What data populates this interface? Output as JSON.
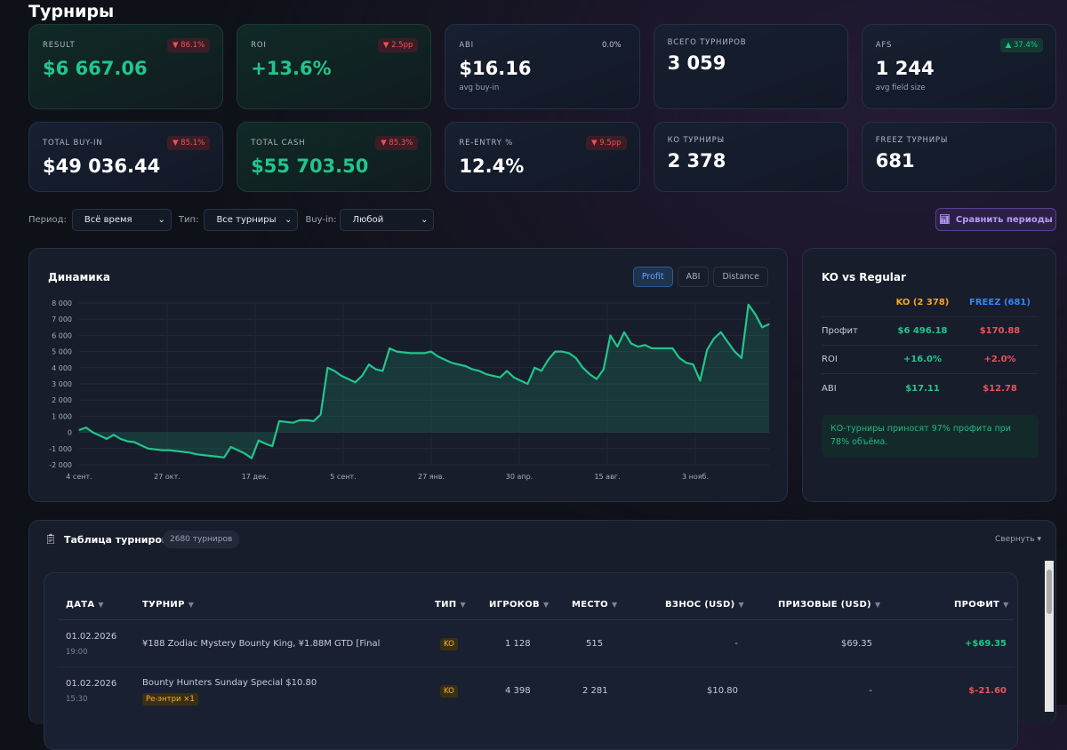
{
  "page": {
    "title": "Турниры"
  },
  "cards": [
    {
      "label": "RESULT",
      "value": "$6 667.06",
      "badge": "▼ 86.1%",
      "badge_dir": "down"
    },
    {
      "label": "ROI",
      "value": "+13.6%",
      "badge": "▼ 2.5pp",
      "badge_dir": "down"
    },
    {
      "label": "ABI",
      "value": "$16.16",
      "sub": "avg buy-in",
      "badge": "0.0%",
      "badge_dir": "neutral"
    },
    {
      "label": "ВСЕГО ТУРНИРОВ",
      "value": "3 059"
    },
    {
      "label": "AFS",
      "value": "1 244",
      "sub": "avg field size",
      "badge": "▲ 37.4%",
      "badge_dir": "up"
    },
    {
      "label": "TOTAL BUY-IN",
      "value": "$49 036.44",
      "badge": "▼ 85.1%",
      "badge_dir": "down"
    },
    {
      "label": "TOTAL CASH",
      "value": "$55 703.50",
      "badge": "▼ 85.3%",
      "badge_dir": "down"
    },
    {
      "label": "RE-ENTRY %",
      "value": "12.4%",
      "badge": "▼ 9.5pp",
      "badge_dir": "down"
    },
    {
      "label": "КО ТУРНИРЫ",
      "value": "2 378"
    },
    {
      "label": "FREEZ ТУРНИРЫ",
      "value": "681"
    }
  ],
  "filters": {
    "period_label": "Период:",
    "period_value": "Всё время",
    "type_label": "Тип:",
    "type_value": "Все турниры",
    "buyin_label": "Buy-in:",
    "buyin_value": "Любой",
    "compare_label": "Сравнить периоды"
  },
  "chart_panel": {
    "title": "Динамика",
    "toggles": [
      "Profit",
      "ABI",
      "Distance"
    ],
    "active": "Profit"
  },
  "chart_data": {
    "type": "area",
    "color": "#22c58b",
    "ylim": [
      -2000,
      8000
    ],
    "y_ticks": [
      "8 000",
      "7 000",
      "6 000",
      "5 000",
      "4 000",
      "3 000",
      "2 000",
      "1 000",
      "0",
      "-1 000",
      "-2 000"
    ],
    "x_ticks": [
      "4 сент.",
      "27 окт.",
      "17 дек.",
      "5 сент.",
      "27 янв.",
      "30 апр.",
      "15 авг.",
      "3 нояб."
    ],
    "grid": true,
    "values": [
      150,
      300,
      0,
      -200,
      -400,
      -150,
      -400,
      -550,
      -600,
      -800,
      -1000,
      -1050,
      -1100,
      -1100,
      -1150,
      -1200,
      -1250,
      -1350,
      -1400,
      -1450,
      -1500,
      -1550,
      -900,
      -1100,
      -1300,
      -1600,
      -500,
      -700,
      -850,
      700,
      650,
      600,
      750,
      750,
      700,
      1100,
      4000,
      3800,
      3500,
      3300,
      3100,
      3500,
      4200,
      3900,
      3800,
      5200,
      5000,
      4950,
      4900,
      4900,
      4900,
      5000,
      4700,
      4500,
      4300,
      4200,
      4100,
      3900,
      3800,
      3600,
      3500,
      3400,
      3800,
      3400,
      3200,
      3000,
      4000,
      3800,
      4500,
      5000,
      5000,
      4900,
      4600,
      4000,
      3600,
      3300,
      3900,
      6000,
      5300,
      6200,
      5500,
      5300,
      5400,
      5200,
      5200,
      5200,
      5200,
      4600,
      4300,
      4200,
      3200,
      5100,
      5800,
      6200,
      5600,
      5000,
      4600,
      7900,
      7300,
      6500,
      6700
    ]
  },
  "ko_panel": {
    "title": "KO vs Regular",
    "col_ko": "KO (2 378)",
    "col_freez": "FREEZ (681)",
    "ko_color": "#f5a623",
    "freez_color": "#3b82f6",
    "rows": [
      {
        "label": "Профит",
        "ko": "$6 496.18",
        "freez": "$170.88"
      },
      {
        "label": "ROI",
        "ko": "+16.0%",
        "freez": "+2.0%"
      },
      {
        "label": "ABI",
        "ko": "$17.11",
        "freez": "$12.78"
      }
    ],
    "note": "КО-турниры приносят 97% профита при 78% объёма."
  },
  "table": {
    "title": "Таблица турниров",
    "count": "2680 турниров",
    "collapse": "Свернуть ▾",
    "headers": [
      "ДАТА",
      "ТУРНИР",
      "ТИП",
      "ИГРОКОВ",
      "МЕСТО",
      "ВЗНОС (USD)",
      "ПРИЗОВЫЕ (USD)",
      "ПРОФИТ"
    ],
    "rows": [
      {
        "date": "01.02.2026",
        "time": "19:00",
        "name": "¥188 Zodiac Mystery Bounty King, ¥1.88M GTD [Final",
        "type": "KO",
        "players": "1 128",
        "place": "515",
        "buyin": "-",
        "prize": "$69.35",
        "profit": "+$69.35"
      },
      {
        "date": "01.02.2026",
        "time": "15:30",
        "name": "Bounty Hunters Sunday Special $10.80",
        "tag": "Ре-энтри ×1",
        "type": "KO",
        "players": "4 398",
        "place": "2 281",
        "buyin": "$10.80",
        "prize": "-",
        "profit": "$-21.60"
      }
    ]
  }
}
